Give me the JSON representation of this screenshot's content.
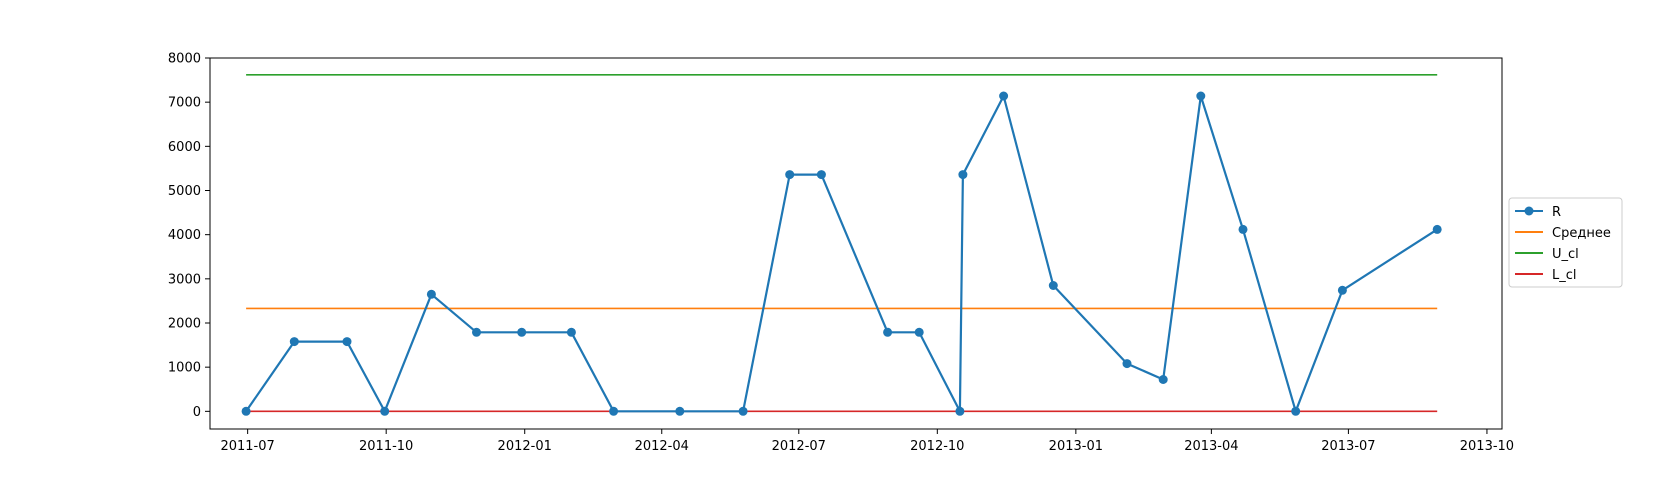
{
  "chart_data": {
    "type": "line",
    "title": "",
    "xlabel": "",
    "ylabel": "",
    "x": [
      "2011-06-30",
      "2011-08-01",
      "2011-09-05",
      "2011-09-30",
      "2011-10-31",
      "2011-11-30",
      "2011-12-30",
      "2012-02-01",
      "2012-02-29",
      "2012-04-13",
      "2012-05-25",
      "2012-06-25",
      "2012-07-16",
      "2012-08-29",
      "2012-09-19",
      "2012-10-16",
      "2012-10-18",
      "2012-11-14",
      "2012-12-17",
      "2013-02-04",
      "2013-02-28",
      "2013-03-25",
      "2013-04-22",
      "2013-05-27",
      "2013-06-27",
      "2013-08-29"
    ],
    "series": [
      {
        "name": "R",
        "color": "#1f77b4",
        "marker": "circle",
        "values": [
          0,
          1580,
          1580,
          0,
          2650,
          1790,
          1790,
          1790,
          0,
          0,
          0,
          5360,
          5360,
          1790,
          1790,
          0,
          5360,
          7140,
          2850,
          1080,
          720,
          7140,
          4120,
          0,
          2740,
          4120
        ]
      },
      {
        "name": "Среднее",
        "color": "#ff7f0e",
        "values": [
          2330,
          2330,
          2330,
          2330,
          2330,
          2330,
          2330,
          2330,
          2330,
          2330,
          2330,
          2330,
          2330,
          2330,
          2330,
          2330,
          2330,
          2330,
          2330,
          2330,
          2330,
          2330,
          2330,
          2330,
          2330,
          2330
        ]
      },
      {
        "name": "U_cl",
        "color": "#2ca02c",
        "values": [
          7620,
          7620,
          7620,
          7620,
          7620,
          7620,
          7620,
          7620,
          7620,
          7620,
          7620,
          7620,
          7620,
          7620,
          7620,
          7620,
          7620,
          7620,
          7620,
          7620,
          7620,
          7620,
          7620,
          7620,
          7620,
          7620
        ]
      },
      {
        "name": "L_cl",
        "color": "#d62728",
        "values": [
          0,
          0,
          0,
          0,
          0,
          0,
          0,
          0,
          0,
          0,
          0,
          0,
          0,
          0,
          0,
          0,
          0,
          0,
          0,
          0,
          0,
          0,
          0,
          0,
          0,
          0
        ]
      }
    ],
    "ylim": [
      -400,
      8000
    ],
    "xlim": [
      "2011-06-06",
      "2013-10-11"
    ],
    "yticks": [
      0,
      1000,
      2000,
      3000,
      4000,
      5000,
      6000,
      7000,
      8000
    ],
    "xticks": [
      "2011-07",
      "2011-10",
      "2012-01",
      "2012-04",
      "2012-07",
      "2012-10",
      "2013-01",
      "2013-04",
      "2013-07",
      "2013-10"
    ],
    "grid": false,
    "legend": "right, outside plot"
  }
}
